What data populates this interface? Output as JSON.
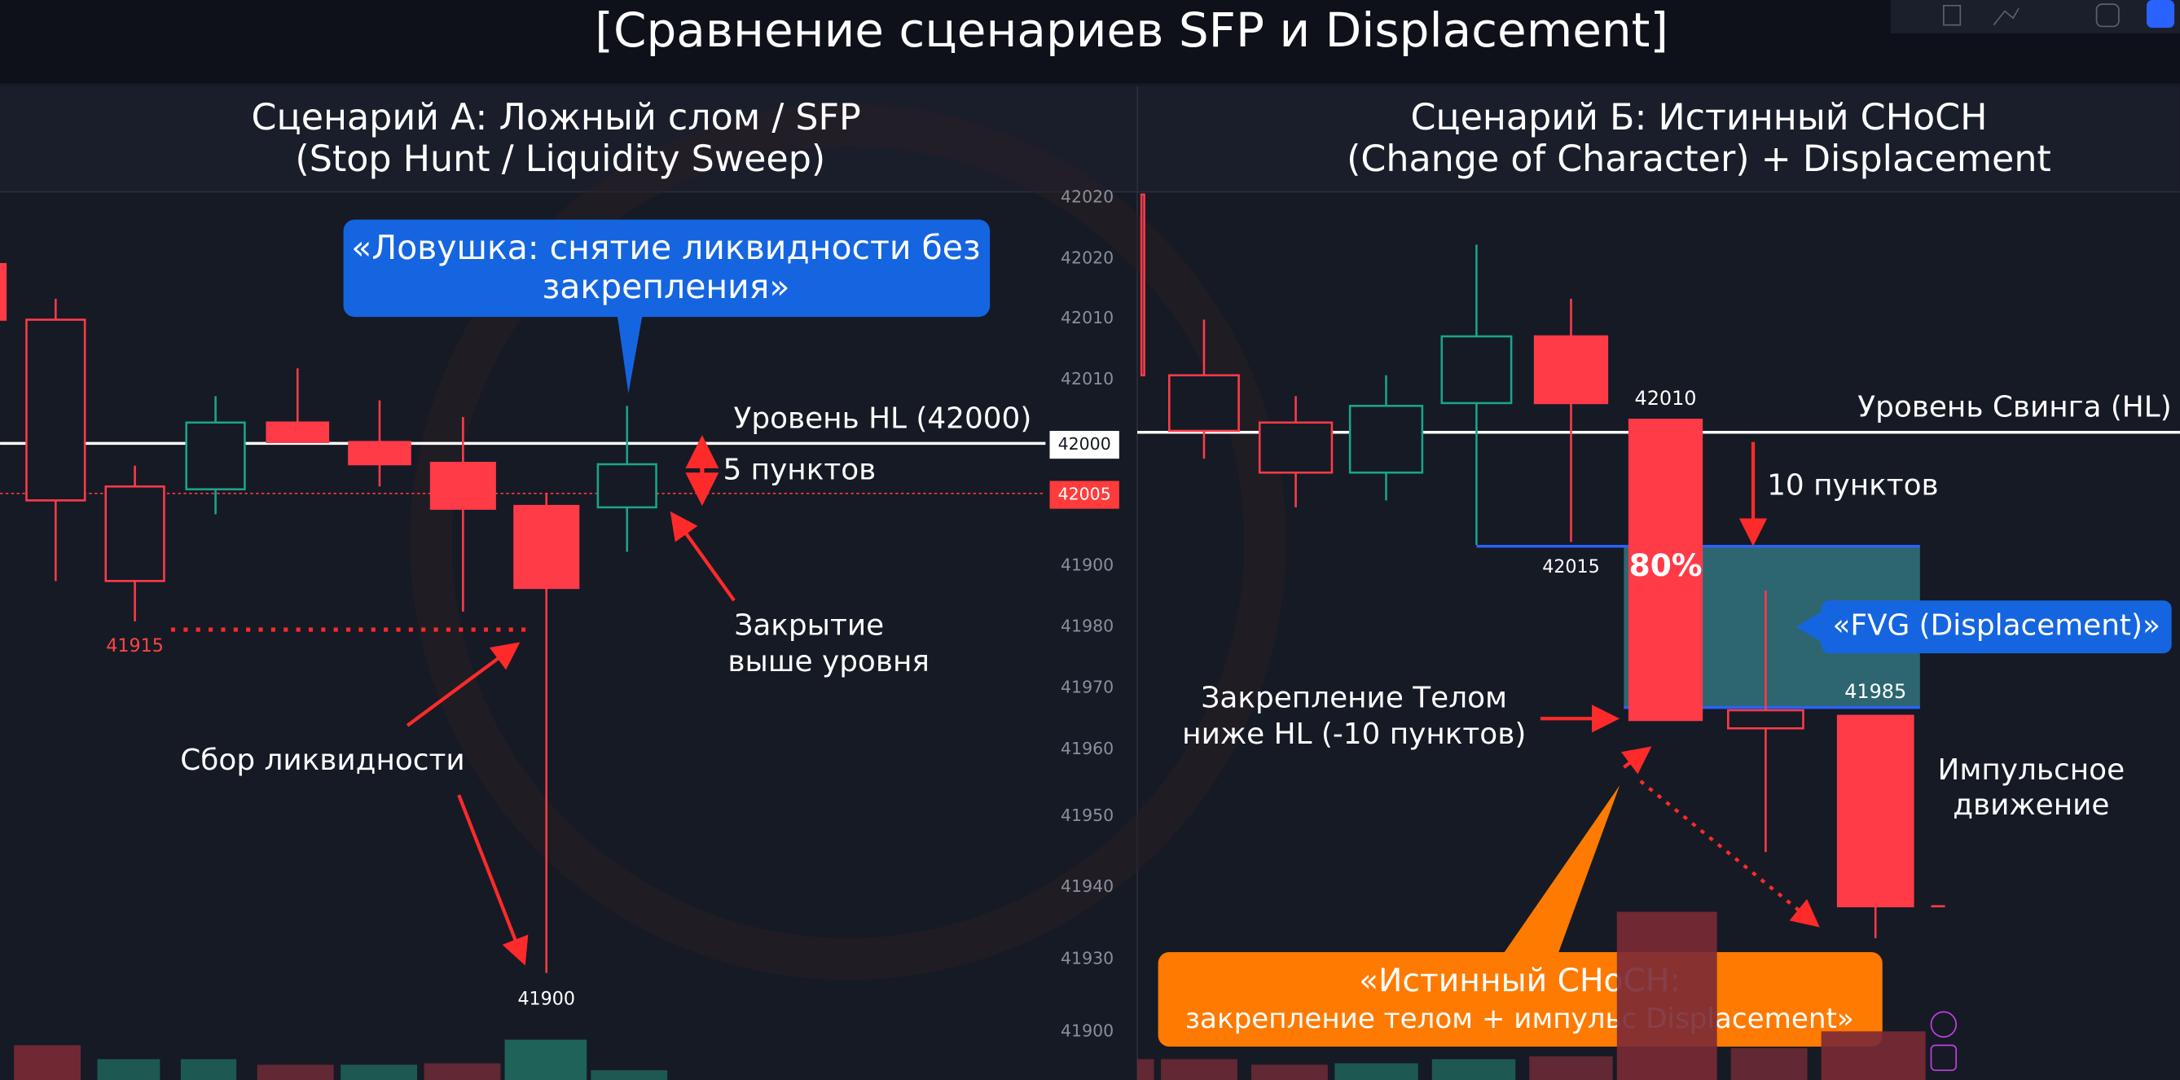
{
  "title": "[Сравнение сценариев SFP и Displacement]",
  "left": {
    "heading": [
      "Сценарий А: Ложный слом / SFP",
      "(Stop Hunt / Liquidity Sweep)"
    ],
    "callout": [
      "«Ловушка: снятие ликвидности без",
      "закрепления»"
    ],
    "level": "Уровень HL (42000)",
    "distance": "5 пунктов",
    "close_note": [
      "Закрытие",
      "выше уровня"
    ],
    "sweep_note": "Сбор ликвидности",
    "low_label": "41915",
    "wick_label": "41900"
  },
  "axis": {
    "labels": [
      "42020",
      "42020",
      "42010",
      "42010",
      "41900",
      "41980",
      "41970",
      "41960",
      "41950",
      "41940",
      "41930",
      "41900"
    ],
    "tags": [
      "42000",
      "42005"
    ]
  },
  "right": {
    "heading": [
      "Сценарий Б: Истинный CHoCH",
      "(Change of Character) + Displacement"
    ],
    "level": "Уровень Свинга (HL)",
    "high_label": "42010",
    "prev_label": "42015",
    "distance": "10 пунктов",
    "body_pct": "80%",
    "fvg": "«FVG (Displacement)»",
    "fvg_label": "41985",
    "close_note": [
      "Закрепление Телом",
      "ниже HL (-10 пунктов)"
    ],
    "impulse": [
      "Импульсное",
      "движение"
    ],
    "callout": [
      "«Истинный CHoCH:",
      "закрепление телом + импульс Displacement»"
    ]
  }
}
